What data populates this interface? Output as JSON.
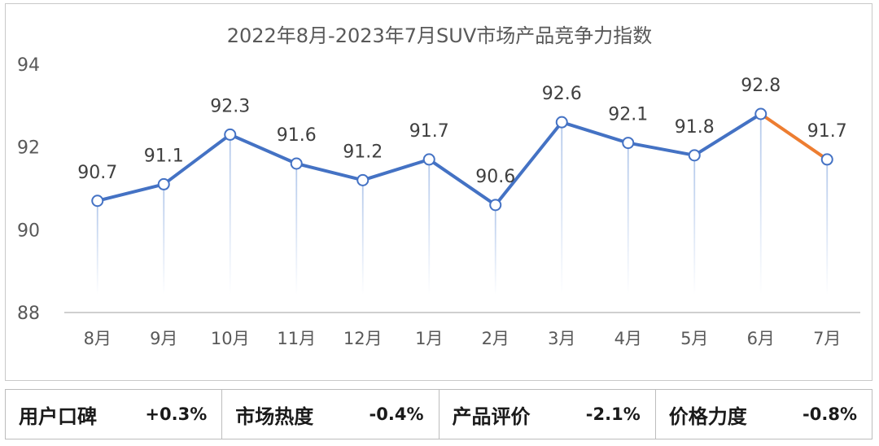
{
  "chart_data": {
    "type": "line",
    "title": "2022年8月-2023年7月SUV市场产品竞争力指数",
    "categories": [
      "8月",
      "9月",
      "10月",
      "11月",
      "12月",
      "1月",
      "2月",
      "3月",
      "4月",
      "5月",
      "6月",
      "7月"
    ],
    "values": [
      90.7,
      91.1,
      92.3,
      91.6,
      91.2,
      91.7,
      90.6,
      92.6,
      92.1,
      91.8,
      92.8,
      91.7
    ],
    "ylim": [
      88,
      94
    ],
    "yticks": [
      88,
      90,
      92,
      94
    ],
    "grid": false,
    "colors": {
      "line": "#4472c4",
      "highlight": "#ed7d31",
      "marker_fill": "#ffffff",
      "drop": "#b4c7e7"
    }
  },
  "stats": [
    {
      "label": "用户口碑",
      "value": "+0.3%"
    },
    {
      "label": "市场热度",
      "value": "-0.4%"
    },
    {
      "label": "产品评价",
      "value": "-2.1%"
    },
    {
      "label": "价格力度",
      "value": "-0.8%"
    }
  ]
}
